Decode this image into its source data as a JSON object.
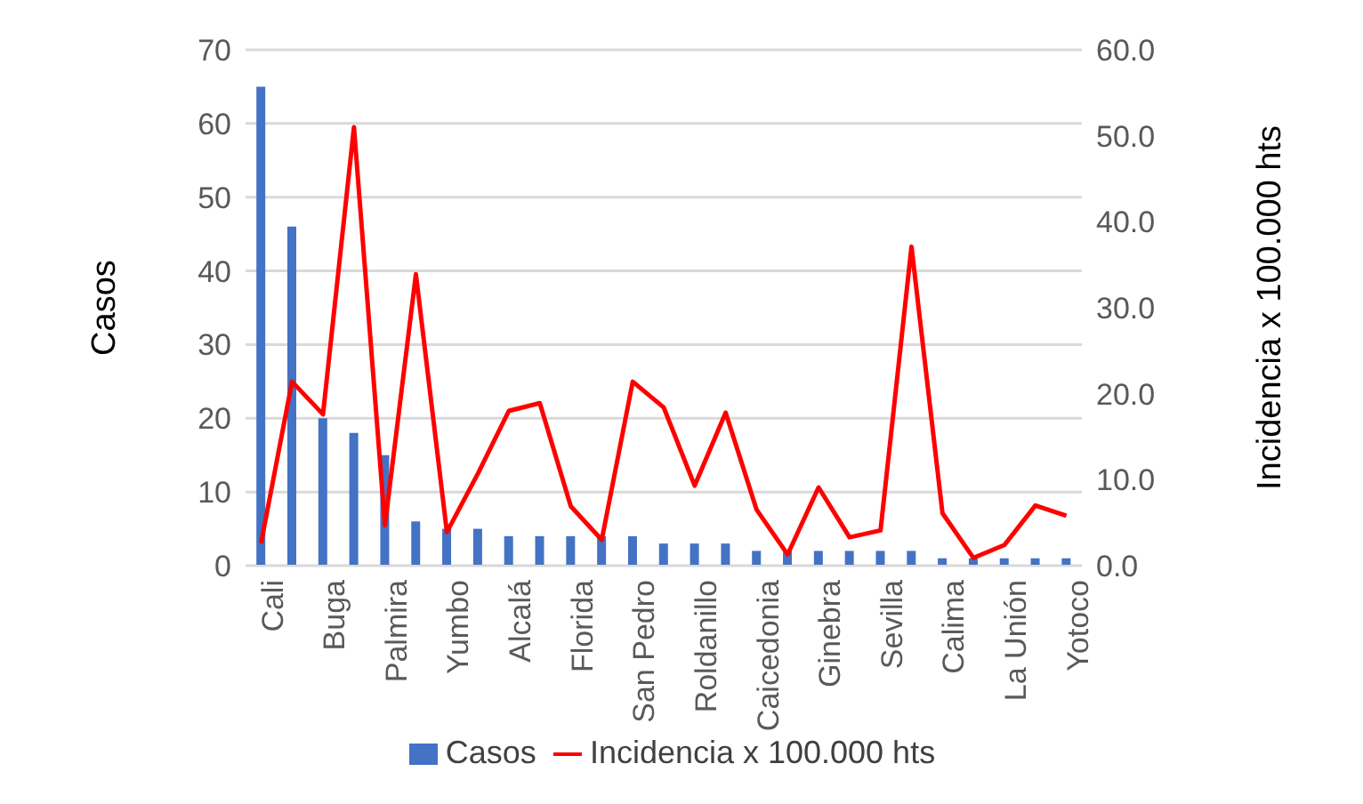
{
  "chart_data": {
    "type": "bar",
    "categories": [
      "Cali",
      null,
      "Buga",
      null,
      "Palmira",
      null,
      "Yumbo",
      null,
      "Alcalá",
      null,
      "Florida",
      null,
      "San Pedro",
      null,
      "Roldanillo",
      null,
      "Caicedonia",
      null,
      "Ginebra",
      null,
      "Sevilla",
      null,
      "Calima",
      null,
      "La Unión",
      null,
      "Yotoco"
    ],
    "series": [
      {
        "name": "Casos",
        "color": "#4472c4",
        "values": [
          65,
          46,
          20,
          18,
          15,
          6,
          5,
          5,
          4,
          4,
          4,
          4,
          4,
          3,
          3,
          3,
          2,
          2,
          2,
          2,
          2,
          2,
          1,
          1,
          1,
          1,
          1
        ]
      },
      {
        "name": "Incidencia x 100.000 hts",
        "type": "line",
        "axis": "y2",
        "color": "#ff0000",
        "values": [
          2.6,
          21.4,
          17.6,
          51.0,
          4.7,
          33.9,
          3.9,
          10.7,
          18.0,
          18.9,
          6.9,
          3.0,
          21.4,
          18.4,
          9.3,
          17.8,
          6.5,
          1.3,
          9.1,
          3.3,
          4.1,
          37.1,
          6.1,
          0.9,
          2.4,
          7.0,
          5.8
        ]
      }
    ],
    "ylabel": "Casos",
    "y2label": "Incidencia x 100.000 hts",
    "ylim": [
      0,
      70
    ],
    "yticks": [
      0,
      10,
      20,
      30,
      40,
      50,
      60,
      70
    ],
    "y2lim": [
      0,
      60
    ],
    "y2ticks": [
      {
        "value": 0,
        "label": "0.0"
      },
      {
        "value": 10,
        "label": "10.0"
      },
      {
        "value": 20,
        "label": "20.0"
      },
      {
        "value": 30,
        "label": "30.0"
      },
      {
        "value": 40,
        "label": "40.0"
      },
      {
        "value": 50,
        "label": "50.0"
      },
      {
        "value": 60,
        "label": "60.0"
      }
    ],
    "grid": "y",
    "legend": "bottom",
    "marker": "none",
    "line_style": "solid"
  }
}
